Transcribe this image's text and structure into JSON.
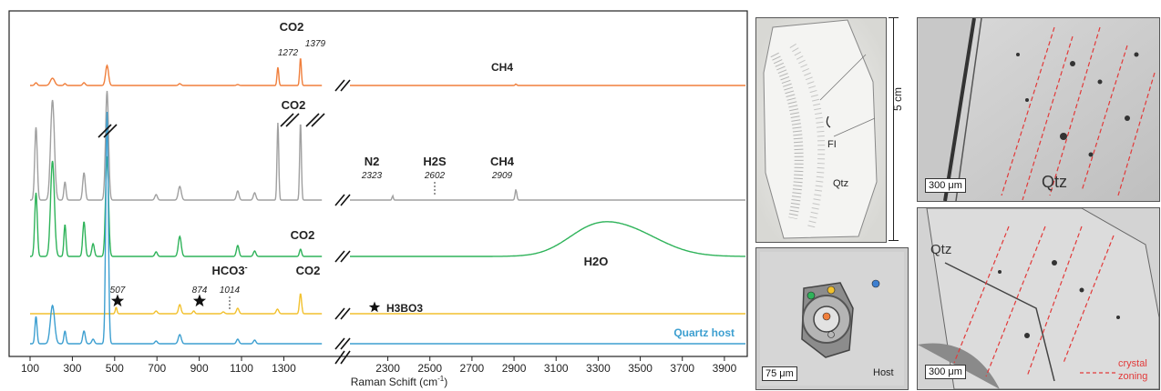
{
  "chart_data": {
    "type": "line",
    "xlabel": "Raman Schift (cm⁻¹)",
    "xlabel_text": "Raman Schift (cm",
    "xlabel_sup": "-1",
    "xlabel_close": ")",
    "x_ticks_left": [
      100,
      300,
      500,
      700,
      900,
      1100,
      1300
    ],
    "x_ticks_right": [
      2300,
      2500,
      2700,
      2900,
      3100,
      3300,
      3500,
      3700,
      3900
    ],
    "x_ranges": [
      [
        100,
        1480
      ],
      [
        2120,
        4000
      ]
    ],
    "axis_break": true,
    "series": [
      {
        "key": "orange",
        "color": "#f07f3c"
      },
      {
        "key": "gray",
        "color": "#a0a0a0"
      },
      {
        "key": "green",
        "color": "#2fb35a"
      },
      {
        "key": "yellow",
        "color": "#f2c12e"
      },
      {
        "key": "blue",
        "color": "#3d9fd0"
      }
    ],
    "annotations": {
      "co2_orange": "CO2",
      "peak_1272": "1272",
      "peak_1379": "1379",
      "ch4_orange": "CH4",
      "co2_gray": "CO2",
      "n2": "N2",
      "n2_val": "2323",
      "h2s": "H2S",
      "h2s_val": "2602",
      "ch4_gray": "CH4",
      "ch4_val": "2909",
      "co2_green": "CO2",
      "h2o": "H2O",
      "hco3": "HCO3",
      "hco3_sup": "-",
      "hco3_val": "1014",
      "co2_yellow": "CO2",
      "peak_507": "507",
      "peak_874": "874",
      "h3bo3": "H3BO3",
      "quartz_host": "Quartz host"
    }
  },
  "photos": {
    "top_left": {
      "fi_label": "FI",
      "qtz_label": "Qtz",
      "scale_label": "5 cm"
    },
    "bottom_left": {
      "scale_label": "75 μm",
      "host_label": "Host"
    },
    "top_right": {
      "scale_label": "300 μm",
      "qtz_label": "Qtz"
    },
    "bottom_right": {
      "scale_label": "300 μm",
      "qtz_label": "Qtz",
      "zoning_label_1": "crystal",
      "zoning_label_2": "zoning"
    }
  }
}
